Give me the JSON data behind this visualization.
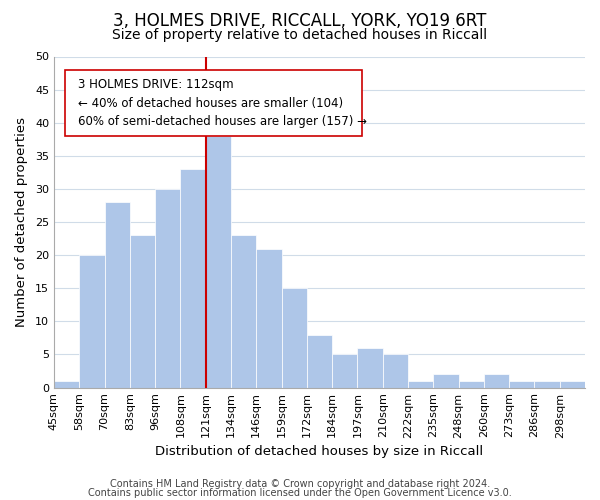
{
  "title": "3, HOLMES DRIVE, RICCALL, YORK, YO19 6RT",
  "subtitle": "Size of property relative to detached houses in Riccall",
  "xlabel": "Distribution of detached houses by size in Riccall",
  "ylabel": "Number of detached properties",
  "bar_labels": [
    "45sqm",
    "58sqm",
    "70sqm",
    "83sqm",
    "96sqm",
    "108sqm",
    "121sqm",
    "134sqm",
    "146sqm",
    "159sqm",
    "172sqm",
    "184sqm",
    "197sqm",
    "210sqm",
    "222sqm",
    "235sqm",
    "248sqm",
    "260sqm",
    "273sqm",
    "286sqm",
    "298sqm"
  ],
  "bar_values": [
    1,
    20,
    28,
    23,
    30,
    33,
    38,
    23,
    21,
    15,
    8,
    5,
    6,
    5,
    1,
    2,
    1,
    2,
    1,
    1,
    1
  ],
  "bar_color": "#aec6e8",
  "bar_edge_color": "#ffffff",
  "vline_color": "#cc0000",
  "vline_x": 6.0,
  "annotation_text": "3 HOLMES DRIVE: 112sqm\n← 40% of detached houses are smaller (104)\n60% of semi-detached houses are larger (157) →",
  "ylim": [
    0,
    50
  ],
  "yticks": [
    0,
    5,
    10,
    15,
    20,
    25,
    30,
    35,
    40,
    45,
    50
  ],
  "footer1": "Contains HM Land Registry data © Crown copyright and database right 2024.",
  "footer2": "Contains public sector information licensed under the Open Government Licence v3.0.",
  "background_color": "#ffffff",
  "grid_color": "#d0dce8",
  "title_fontsize": 12,
  "subtitle_fontsize": 10,
  "axis_label_fontsize": 9.5,
  "tick_fontsize": 8,
  "footer_fontsize": 7
}
